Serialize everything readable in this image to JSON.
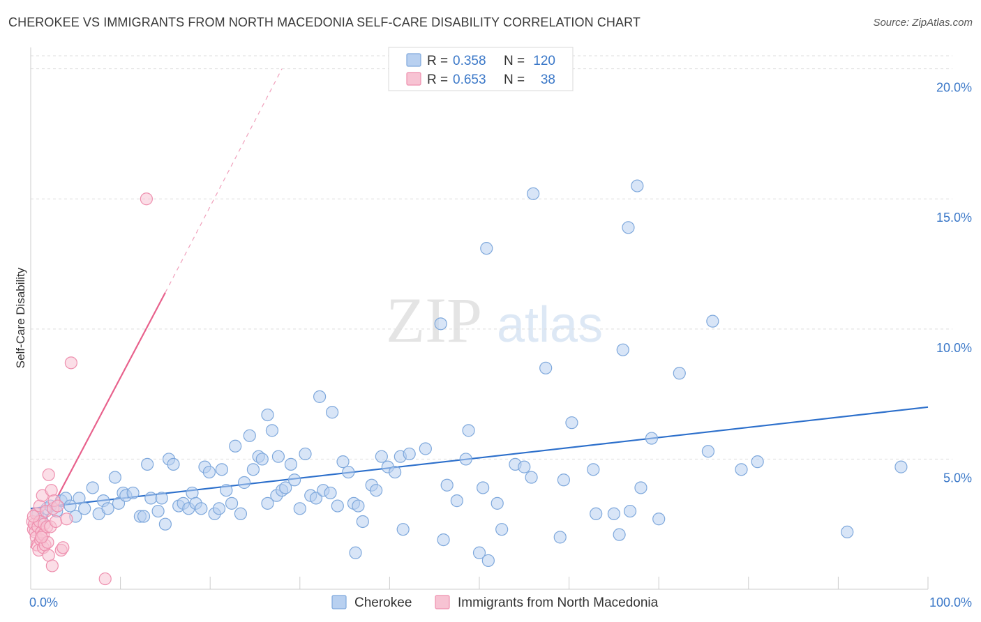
{
  "title": "CHEROKEE VS IMMIGRANTS FROM NORTH MACEDONIA SELF-CARE DISABILITY CORRELATION CHART",
  "source": "Source: ZipAtlas.com",
  "watermark": {
    "zip": "ZIP",
    "atlas": "atlas"
  },
  "colors": {
    "blue_fill": "#b8d0f0",
    "blue_stroke": "#7ea8dc",
    "blue_line": "#2c6fcb",
    "pink_fill": "#f7c3d3",
    "pink_stroke": "#ee8fae",
    "pink_line": "#e8618c",
    "tick_text": "#3b78c8",
    "grid": "#dddddd"
  },
  "legend": {
    "rows": [
      {
        "r_label": "R =",
        "r_value": "0.358",
        "n_label": "N =",
        "n_value": "120"
      },
      {
        "r_label": "R =",
        "r_value": "0.653",
        "n_label": "N =",
        "n_value": "38"
      }
    ]
  },
  "bottom_legend": [
    "Cherokee",
    "Immigrants from North Macedonia"
  ],
  "chart_data": {
    "type": "scatter",
    "title": "CHEROKEE VS IMMIGRANTS FROM NORTH MACEDONIA SELF-CARE DISABILITY CORRELATION CHART",
    "xlabel": "",
    "ylabel": "Self-Care Disability",
    "xlim": [
      0,
      100
    ],
    "ylim": [
      0,
      20.5
    ],
    "x_tick_labels": [
      "0.0%",
      "100.0%"
    ],
    "y_ticks": [
      5,
      10,
      15,
      20
    ],
    "y_tick_labels": [
      "5.0%",
      "10.0%",
      "15.0%",
      "20.0%"
    ],
    "grid": true,
    "legend_position": "top-center",
    "series": [
      {
        "name": "Cherokee",
        "r": 0.358,
        "n": 120,
        "trend": {
          "x0": 0,
          "y0": 3.1,
          "x1": 100,
          "y1": 7.0
        },
        "points": [
          [
            0.8,
            2.9
          ],
          [
            1.2,
            2.7
          ],
          [
            1.8,
            3.1
          ],
          [
            2.2,
            3.2
          ],
          [
            2.9,
            3.0
          ],
          [
            3.4,
            3.4
          ],
          [
            3.9,
            3.5
          ],
          [
            4.4,
            3.2
          ],
          [
            5.0,
            2.8
          ],
          [
            5.4,
            3.5
          ],
          [
            6.0,
            3.1
          ],
          [
            6.9,
            3.9
          ],
          [
            7.6,
            2.9
          ],
          [
            8.1,
            3.4
          ],
          [
            8.6,
            3.1
          ],
          [
            9.4,
            4.3
          ],
          [
            9.8,
            3.3
          ],
          [
            10.3,
            3.7
          ],
          [
            10.6,
            3.6
          ],
          [
            11.4,
            3.7
          ],
          [
            12.2,
            2.8
          ],
          [
            12.6,
            2.8
          ],
          [
            13.0,
            4.8
          ],
          [
            13.4,
            3.5
          ],
          [
            14.2,
            3.0
          ],
          [
            14.6,
            3.5
          ],
          [
            15.0,
            2.5
          ],
          [
            15.4,
            5.0
          ],
          [
            15.9,
            4.8
          ],
          [
            16.5,
            3.2
          ],
          [
            17.0,
            3.3
          ],
          [
            17.6,
            3.1
          ],
          [
            18.0,
            3.7
          ],
          [
            18.4,
            3.3
          ],
          [
            19.0,
            3.1
          ],
          [
            19.4,
            4.7
          ],
          [
            19.9,
            4.5
          ],
          [
            20.5,
            2.9
          ],
          [
            21.0,
            3.1
          ],
          [
            21.3,
            4.6
          ],
          [
            21.8,
            3.8
          ],
          [
            22.4,
            3.3
          ],
          [
            22.8,
            5.5
          ],
          [
            23.4,
            2.9
          ],
          [
            23.8,
            4.1
          ],
          [
            24.4,
            5.9
          ],
          [
            24.8,
            4.6
          ],
          [
            25.4,
            5.1
          ],
          [
            25.8,
            5.0
          ],
          [
            26.4,
            3.3
          ],
          [
            26.4,
            6.7
          ],
          [
            26.9,
            6.1
          ],
          [
            27.4,
            3.6
          ],
          [
            27.6,
            5.1
          ],
          [
            28.0,
            3.8
          ],
          [
            28.4,
            3.9
          ],
          [
            29.0,
            4.8
          ],
          [
            29.4,
            4.2
          ],
          [
            30.0,
            3.1
          ],
          [
            30.6,
            5.2
          ],
          [
            31.2,
            3.6
          ],
          [
            31.8,
            3.5
          ],
          [
            32.2,
            7.4
          ],
          [
            32.6,
            3.8
          ],
          [
            33.4,
            3.7
          ],
          [
            33.6,
            6.8
          ],
          [
            34.2,
            3.2
          ],
          [
            34.8,
            4.9
          ],
          [
            35.4,
            4.5
          ],
          [
            36.0,
            3.3
          ],
          [
            36.5,
            3.2
          ],
          [
            37.0,
            2.6
          ],
          [
            36.2,
            1.4
          ],
          [
            38.0,
            4.0
          ],
          [
            38.5,
            3.8
          ],
          [
            39.1,
            5.1
          ],
          [
            39.8,
            4.7
          ],
          [
            40.6,
            4.5
          ],
          [
            41.2,
            5.1
          ],
          [
            41.5,
            2.3
          ],
          [
            42.2,
            5.2
          ],
          [
            44.0,
            5.4
          ],
          [
            45.7,
            10.2
          ],
          [
            46.0,
            1.9
          ],
          [
            46.4,
            4.0
          ],
          [
            47.5,
            3.4
          ],
          [
            48.5,
            5.0
          ],
          [
            48.8,
            6.1
          ],
          [
            50.0,
            1.4
          ],
          [
            50.4,
            3.9
          ],
          [
            50.8,
            13.1
          ],
          [
            51.0,
            1.1
          ],
          [
            52.0,
            3.3
          ],
          [
            52.5,
            2.3
          ],
          [
            54.0,
            4.8
          ],
          [
            55.0,
            4.7
          ],
          [
            55.8,
            4.3
          ],
          [
            56.0,
            15.2
          ],
          [
            57.4,
            8.5
          ],
          [
            59.0,
            2.0
          ],
          [
            59.4,
            4.2
          ],
          [
            60.3,
            6.4
          ],
          [
            62.7,
            4.6
          ],
          [
            63.0,
            2.9
          ],
          [
            65.0,
            2.9
          ],
          [
            65.6,
            2.1
          ],
          [
            66.0,
            9.2
          ],
          [
            66.6,
            13.9
          ],
          [
            67.6,
            15.5
          ],
          [
            68.0,
            3.9
          ],
          [
            69.2,
            5.8
          ],
          [
            70.0,
            2.7
          ],
          [
            72.3,
            8.3
          ],
          [
            75.5,
            5.3
          ],
          [
            76.0,
            10.3
          ],
          [
            79.2,
            4.6
          ],
          [
            81.0,
            4.9
          ],
          [
            91.0,
            2.2
          ],
          [
            97.0,
            4.7
          ],
          [
            66.8,
            3.0
          ]
        ]
      },
      {
        "name": "Immigrants from North Macedonia",
        "r": 0.653,
        "n": 38,
        "trend": {
          "x0": 0,
          "y0": 1.6,
          "x1": 15,
          "y1": 11.4,
          "dash_x1": 28,
          "dash_y1": 20.0
        },
        "points": [
          [
            0.2,
            2.6
          ],
          [
            0.3,
            2.3
          ],
          [
            0.4,
            2.5
          ],
          [
            0.5,
            2.2
          ],
          [
            0.6,
            2.9
          ],
          [
            0.6,
            2.0
          ],
          [
            0.7,
            1.7
          ],
          [
            0.8,
            2.4
          ],
          [
            0.9,
            1.5
          ],
          [
            1.0,
            3.2
          ],
          [
            1.0,
            2.6
          ],
          [
            1.1,
            1.9
          ],
          [
            1.2,
            2.2
          ],
          [
            1.3,
            3.6
          ],
          [
            1.4,
            2.1
          ],
          [
            1.4,
            1.6
          ],
          [
            1.5,
            2.5
          ],
          [
            1.6,
            1.7
          ],
          [
            1.7,
            3.0
          ],
          [
            1.8,
            2.4
          ],
          [
            1.9,
            1.8
          ],
          [
            2.0,
            4.4
          ],
          [
            2.0,
            1.3
          ],
          [
            2.2,
            2.4
          ],
          [
            2.3,
            3.8
          ],
          [
            2.4,
            0.9
          ],
          [
            2.5,
            3.1
          ],
          [
            2.6,
            3.4
          ],
          [
            2.8,
            2.6
          ],
          [
            3.0,
            3.2
          ],
          [
            3.4,
            1.5
          ],
          [
            3.6,
            1.6
          ],
          [
            4.0,
            2.7
          ],
          [
            4.5,
            8.7
          ],
          [
            12.9,
            15.0
          ],
          [
            8.3,
            0.4
          ],
          [
            1.2,
            2.0
          ],
          [
            0.3,
            2.8
          ]
        ]
      }
    ]
  }
}
